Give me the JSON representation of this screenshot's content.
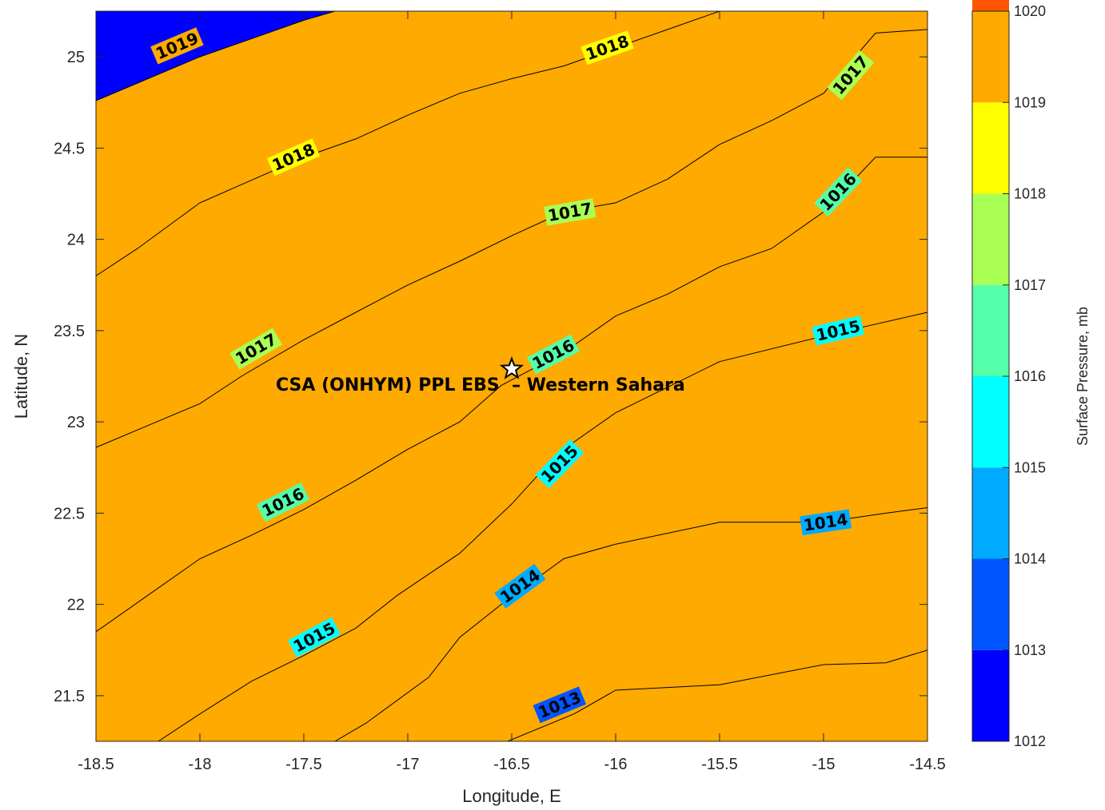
{
  "chart_data": {
    "type": "contourf",
    "title": "",
    "xlabel": "Longitude, E",
    "ylabel": "Latitude, N",
    "xlim": [
      -18.5,
      -14.5
    ],
    "ylim": [
      21.25,
      25.25
    ],
    "xticks": [
      "-18.5",
      "-18",
      "-17.5",
      "-17",
      "-16.5",
      "-16",
      "-15.5",
      "-15",
      "-14.5"
    ],
    "yticks": [
      "21.5",
      "22",
      "22.5",
      "23",
      "23.5",
      "24",
      "24.5",
      "25"
    ],
    "colorbar": {
      "label": "Surface Pressure, mb",
      "range": [
        1012,
        1020
      ],
      "ticks": [
        "1012",
        "1013",
        "1014",
        "1015",
        "1016",
        "1017",
        "1018",
        "1019",
        "1020"
      ],
      "colors": [
        "#0000ff",
        "#0055ff",
        "#00aaff",
        "#00ffff",
        "#55ffaa",
        "#aaff55",
        "#ffff00",
        "#ffaa00",
        "#ff5500"
      ]
    },
    "contours": [
      {
        "level": 1013,
        "label": "1013",
        "points": [
          [
            -16.52,
            21.25
          ],
          [
            -16.2,
            21.4
          ],
          [
            -16.0,
            21.53
          ],
          [
            -15.5,
            21.56
          ],
          [
            -15.0,
            21.67
          ],
          [
            -14.7,
            21.68
          ],
          [
            -14.5,
            21.75
          ]
        ]
      },
      {
        "level": 1014,
        "label": "1014",
        "points": [
          [
            -17.35,
            21.25
          ],
          [
            -17.2,
            21.35
          ],
          [
            -16.9,
            21.6
          ],
          [
            -16.75,
            21.82
          ],
          [
            -16.55,
            22.0
          ],
          [
            -16.25,
            22.25
          ],
          [
            -16.0,
            22.33
          ],
          [
            -15.5,
            22.45
          ],
          [
            -15.0,
            22.45
          ],
          [
            -14.7,
            22.5
          ],
          [
            -14.5,
            22.53
          ]
        ]
      },
      {
        "level": 1015,
        "label": "1015",
        "points": [
          [
            -18.2,
            21.25
          ],
          [
            -18.0,
            21.4
          ],
          [
            -17.75,
            21.58
          ],
          [
            -17.5,
            21.72
          ],
          [
            -17.25,
            21.87
          ],
          [
            -17.05,
            22.05
          ],
          [
            -16.75,
            22.28
          ],
          [
            -16.5,
            22.55
          ],
          [
            -16.38,
            22.7
          ],
          [
            -16.25,
            22.85
          ],
          [
            -16.0,
            23.05
          ],
          [
            -15.5,
            23.33
          ],
          [
            -15.0,
            23.47
          ],
          [
            -14.5,
            23.6
          ]
        ]
      },
      {
        "level": 1016,
        "label": "1016",
        "points": [
          [
            -18.5,
            21.85
          ],
          [
            -18.25,
            22.05
          ],
          [
            -18.0,
            22.25
          ],
          [
            -17.75,
            22.38
          ],
          [
            -17.5,
            22.52
          ],
          [
            -17.25,
            22.68
          ],
          [
            -17.0,
            22.85
          ],
          [
            -16.75,
            23.0
          ],
          [
            -16.55,
            23.2
          ],
          [
            -16.25,
            23.38
          ],
          [
            -16.0,
            23.58
          ],
          [
            -15.75,
            23.7
          ],
          [
            -15.5,
            23.85
          ],
          [
            -15.25,
            23.95
          ],
          [
            -15.0,
            24.15
          ],
          [
            -14.75,
            24.45
          ],
          [
            -14.5,
            24.45
          ]
        ]
      },
      {
        "level": 1017,
        "label": "1017",
        "points": [
          [
            -18.5,
            22.86
          ],
          [
            -18.25,
            22.98
          ],
          [
            -18.0,
            23.1
          ],
          [
            -17.8,
            23.25
          ],
          [
            -17.5,
            23.45
          ],
          [
            -17.25,
            23.6
          ],
          [
            -17.0,
            23.75
          ],
          [
            -16.75,
            23.88
          ],
          [
            -16.5,
            24.02
          ],
          [
            -16.25,
            24.15
          ],
          [
            -16.0,
            24.2
          ],
          [
            -15.75,
            24.33
          ],
          [
            -15.5,
            24.52
          ],
          [
            -15.25,
            24.65
          ],
          [
            -15.0,
            24.8
          ],
          [
            -14.75,
            25.13
          ],
          [
            -14.5,
            25.15
          ]
        ]
      },
      {
        "level": 1018,
        "label": "1018",
        "points": [
          [
            -18.5,
            23.8
          ],
          [
            -18.3,
            23.95
          ],
          [
            -18.0,
            24.2
          ],
          [
            -17.8,
            24.3
          ],
          [
            -17.5,
            24.45
          ],
          [
            -17.25,
            24.55
          ],
          [
            -17.0,
            24.68
          ],
          [
            -16.75,
            24.8
          ],
          [
            -16.5,
            24.88
          ],
          [
            -16.25,
            24.95
          ],
          [
            -16.0,
            25.05
          ],
          [
            -15.75,
            25.15
          ],
          [
            -15.5,
            25.25
          ]
        ]
      },
      {
        "level": 1019,
        "label": "1019",
        "points": [
          [
            -18.5,
            24.76
          ],
          [
            -18.25,
            24.88
          ],
          [
            -18.0,
            25.0
          ],
          [
            -17.75,
            25.1
          ],
          [
            -17.5,
            25.2
          ],
          [
            -17.35,
            25.25
          ]
        ]
      }
    ],
    "contour_labels": [
      {
        "text": "1013",
        "lon": -16.27,
        "lat": 21.45
      },
      {
        "text": "1014",
        "lon": -16.46,
        "lat": 22.1
      },
      {
        "text": "1014",
        "lon": -14.99,
        "lat": 22.45
      },
      {
        "text": "1015",
        "lon": -17.45,
        "lat": 21.82
      },
      {
        "text": "1015",
        "lon": -16.27,
        "lat": 22.77
      },
      {
        "text": "1015",
        "lon": -14.93,
        "lat": 23.5
      },
      {
        "text": "1016",
        "lon": -17.6,
        "lat": 22.56
      },
      {
        "text": "1016",
        "lon": -16.3,
        "lat": 23.37
      },
      {
        "text": "1016",
        "lon": -14.93,
        "lat": 24.26
      },
      {
        "text": "1017",
        "lon": -17.73,
        "lat": 23.4
      },
      {
        "text": "1017",
        "lon": -16.22,
        "lat": 24.15
      },
      {
        "text": "1017",
        "lon": -14.87,
        "lat": 24.9
      },
      {
        "text": "1018",
        "lon": -17.55,
        "lat": 24.45
      },
      {
        "text": "1018",
        "lon": -16.04,
        "lat": 25.05
      },
      {
        "text": "1019",
        "lon": -18.11,
        "lat": 25.06
      }
    ],
    "site": {
      "lon": -16.5,
      "lat": 23.29,
      "marker": "star-icon",
      "label": "CSA (ONHYM) PPL EBS  – Western Sahara"
    }
  }
}
